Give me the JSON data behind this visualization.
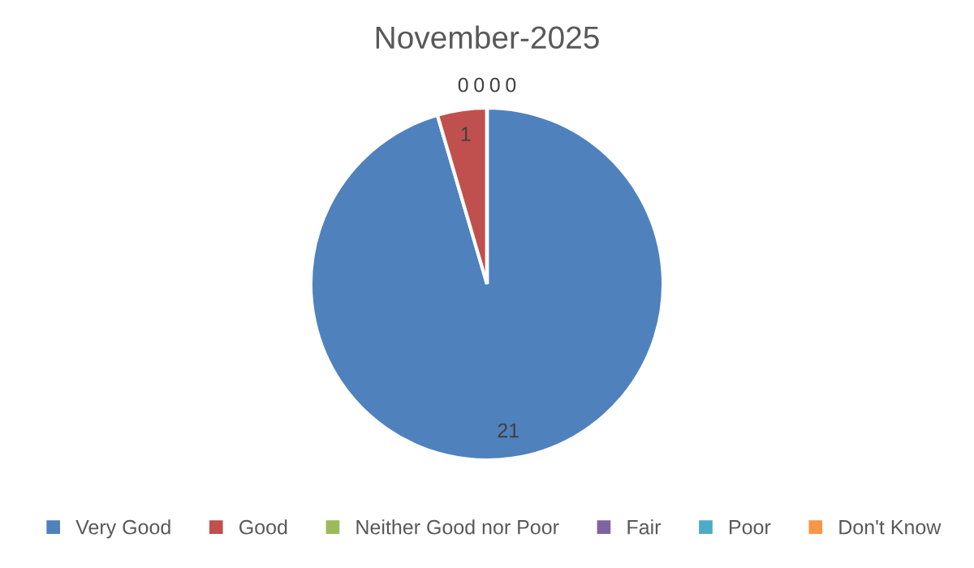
{
  "chart_data": {
    "type": "pie",
    "title": "November-2025",
    "categories": [
      "Very Good",
      "Good",
      "Neither Good nor Poor",
      "Fair",
      "Poor",
      "Don't Know"
    ],
    "values": [
      21,
      1,
      0,
      0,
      0,
      0
    ],
    "colors": [
      "#4f81bd",
      "#c0504d",
      "#9bbb59",
      "#8064a2",
      "#4bacc6",
      "#f79646"
    ],
    "value_labels": [
      "21",
      "1",
      "0",
      "0",
      "0",
      "0"
    ],
    "legend": "bottom"
  }
}
